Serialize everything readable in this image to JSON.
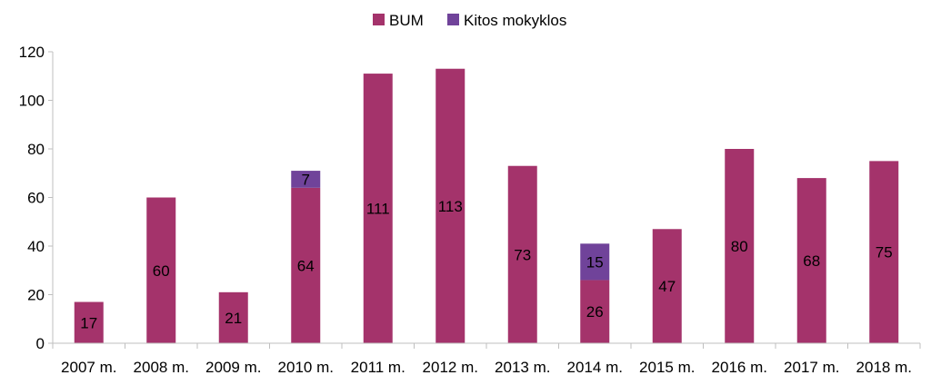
{
  "chart_data": {
    "type": "bar",
    "stacked": true,
    "categories": [
      "2007 m.",
      "2008 m.",
      "2009 m.",
      "2010 m.",
      "2011 m.",
      "2012 m.",
      "2013 m.",
      "2014 m.",
      "2015 m.",
      "2016 m.",
      "2017 m.",
      "2018 m."
    ],
    "series": [
      {
        "name": "BUM",
        "color": "#A4336B",
        "values": [
          17,
          60,
          21,
          64,
          111,
          113,
          73,
          26,
          47,
          80,
          68,
          75
        ],
        "labels": [
          "17",
          "60",
          "21",
          "64",
          "111",
          "113",
          "73",
          "26",
          "47",
          "80",
          "68",
          "75"
        ]
      },
      {
        "name": "Kitos mokyklos",
        "color": "#70439A",
        "values": [
          0,
          0,
          0,
          7,
          0,
          0,
          0,
          15,
          0,
          0,
          0,
          0
        ],
        "labels": [
          "",
          "",
          "",
          "7",
          "",
          "",
          "",
          "15",
          "",
          "",
          "",
          ""
        ]
      }
    ],
    "yticks": [
      "0",
      "20",
      "40",
      "60",
      "80",
      "100",
      "120"
    ],
    "ylim": [
      0,
      120
    ],
    "grid": false,
    "legend": "top-center",
    "title": "",
    "xlabel": "",
    "ylabel": ""
  }
}
